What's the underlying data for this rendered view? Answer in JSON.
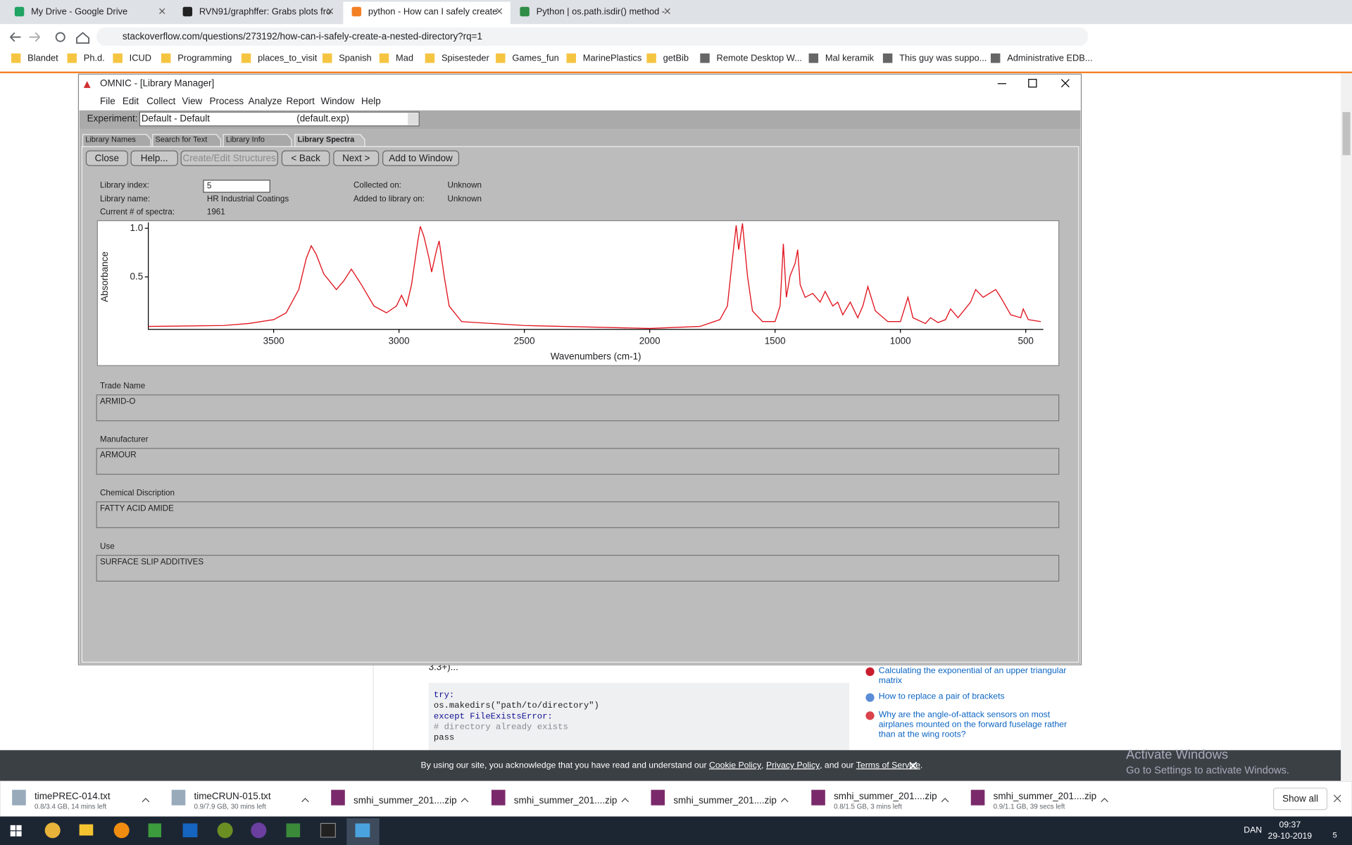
{
  "browser": {
    "tabs": [
      "My Drive - Google Drive",
      "RVN91/graphffer: Grabs plots fro",
      "python - How can I safely create",
      "Python | os.path.isdir() method -"
    ],
    "url": "stackoverflow.com/questions/273192/how-can-i-safely-create-a-nested-directory?rq=1",
    "bookmarks": [
      "Blandet",
      "Ph.d.",
      "ICUD",
      "Programming",
      "places_to_visit",
      "Spanish",
      "Mad",
      "Spisesteder",
      "Games_fun",
      "MarinePlastics",
      "getBib",
      "Remote Desktop W...",
      "Mal keramik",
      "This guy was suppo...",
      "Administrative EDB..."
    ]
  },
  "window": {
    "title": "OMNIC - [Library Manager]",
    "menu": [
      "File",
      "Edit",
      "Collect",
      "View",
      "Process",
      "Analyze",
      "Report",
      "Window",
      "Help"
    ],
    "experiment_label": "Experiment:",
    "experiment_value": "Default - Default",
    "experiment_file": "(default.exp)",
    "tabs": [
      "Library Names",
      "Search for Text",
      "Library Info",
      "Library Spectra"
    ],
    "buttons": [
      "Close",
      "Help...",
      "Create/Edit Structures",
      "< Back",
      "Next >",
      "Add to Window"
    ],
    "info": [
      {
        "label": "Library index:",
        "value": "5"
      },
      {
        "label": "Library name:",
        "value": "HR Industrial Coatings"
      },
      {
        "label": "Current # of spectra:",
        "value": "1961"
      },
      {
        "label": "Collected on:",
        "value": "Unknown"
      },
      {
        "label": "Added to library on:",
        "value": "Unknown"
      }
    ],
    "spectrum": {
      "type": "line",
      "xlabel": "Wavenumbers (cm-1)",
      "ylabel": "Absorbance",
      "color": "#e0141e",
      "xlim": [
        4000,
        430
      ],
      "ylim": [
        -0.04,
        1.06
      ],
      "xticks": [
        3500,
        3000,
        2500,
        2000,
        1500,
        1000,
        500
      ],
      "yticks": [
        0.5,
        {
          "value": 1,
          "label": "1.0"
        }
      ],
      "x": [
        4000,
        3700,
        3600,
        3500,
        3450,
        3400,
        3370,
        3350,
        3330,
        3300,
        3250,
        3220,
        3190,
        3150,
        3100,
        3050,
        3010,
        2990,
        2970,
        2950,
        2925,
        2915,
        2900,
        2880,
        2870,
        2850,
        2840,
        2820,
        2800,
        2750,
        2500,
        2000,
        1800,
        1720,
        1690,
        1670,
        1655,
        1645,
        1635,
        1630,
        1610,
        1590,
        1550,
        1500,
        1480,
        1467,
        1455,
        1440,
        1420,
        1410,
        1400,
        1380,
        1350,
        1320,
        1300,
        1270,
        1250,
        1230,
        1200,
        1170,
        1150,
        1130,
        1100,
        1050,
        1000,
        970,
        950,
        900,
        880,
        850,
        820,
        800,
        770,
        720,
        700,
        670,
        620,
        600,
        560,
        520,
        510,
        490,
        440
      ],
      "values": [
        -0.01,
        0.0,
        0.02,
        0.06,
        0.13,
        0.37,
        0.69,
        0.82,
        0.73,
        0.53,
        0.37,
        0.46,
        0.58,
        0.42,
        0.2,
        0.13,
        0.2,
        0.31,
        0.2,
        0.42,
        0.87,
        1.02,
        0.91,
        0.69,
        0.55,
        0.78,
        0.87,
        0.51,
        0.2,
        0.04,
        0.0,
        -0.03,
        -0.01,
        0.06,
        0.2,
        0.69,
        1.03,
        0.78,
        0.96,
        1.05,
        0.51,
        0.15,
        0.04,
        0.04,
        0.2,
        0.84,
        0.29,
        0.51,
        0.64,
        0.78,
        0.42,
        0.29,
        0.33,
        0.24,
        0.35,
        0.2,
        0.24,
        0.11,
        0.24,
        0.08,
        0.2,
        0.4,
        0.15,
        0.04,
        0.04,
        0.29,
        0.08,
        0.02,
        0.08,
        0.03,
        0.06,
        0.17,
        0.08,
        0.24,
        0.37,
        0.29,
        0.37,
        0.29,
        0.11,
        0.08,
        0.17,
        0.06,
        0.04
      ]
    },
    "fields": [
      {
        "label": "Trade Name",
        "value": "ARMID-O"
      },
      {
        "label": "Manufacturer",
        "value": "ARMOUR"
      },
      {
        "label": "Chemical Discription",
        "value": "FATTY ACID AMIDE"
      },
      {
        "label": "Use",
        "value": "SURFACE SLIP ADDITIVES"
      }
    ]
  },
  "page": {
    "partial_text": "3.3+)...",
    "code": [
      "try:",
      "    os.makedirs(\"path/to/directory\")",
      "except FileExistsError:",
      "    # directory already exists",
      "    pass"
    ],
    "related": [
      [
        "Calculating the exponential of an upper triangular",
        "matrix"
      ],
      [
        "How to replace a pair of brackets"
      ],
      [
        "Why are the angle-of-attack sensors on most",
        "airplanes mounted on the forward fuselage rather",
        "than at the wing roots?"
      ]
    ]
  },
  "cookie_banner": [
    "By using our site, you acknowledge that you have read and understand our ",
    "Cookie Policy",
    ", ",
    "Privacy Policy",
    ", and our ",
    "Terms of Service",
    "."
  ],
  "activation": {
    "title": "Activate Windows",
    "subtitle": "Go to Settings to activate Windows."
  },
  "downloads": [
    {
      "name": "timePREC-014.txt",
      "status": "0.8/3.4 GB, 14 mins left"
    },
    {
      "name": "timeCRUN-015.txt",
      "status": "0.9/7.9 GB, 30 mins left"
    },
    {
      "name": "smhi_summer_201....zip"
    },
    {
      "name": "smhi_summer_201....zip"
    },
    {
      "name": "smhi_summer_201....zip"
    },
    {
      "name": "smhi_summer_201....zip",
      "status": "0.8/1.5 GB, 3 mins left"
    },
    {
      "name": "smhi_summer_201....zip",
      "status": "0.9/1.1 GB, 39 secs left"
    }
  ],
  "show_all": "Show all",
  "taskbar": {
    "language": "DAN",
    "time": "09:37",
    "date": "29-10-2019",
    "notifications": "5"
  }
}
